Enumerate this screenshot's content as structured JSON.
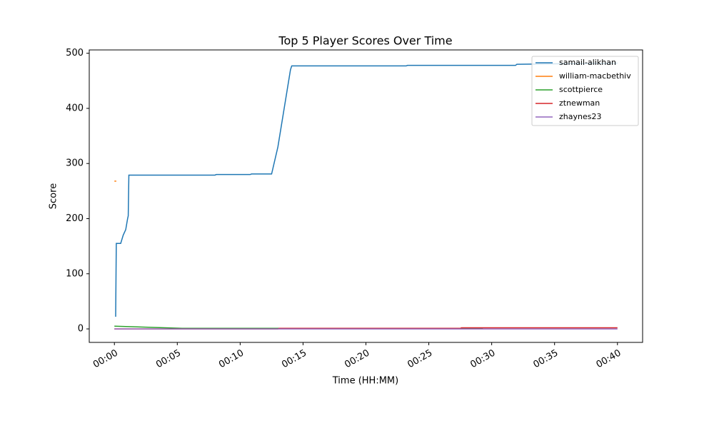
{
  "chart_data": {
    "type": "line",
    "title": "Top 5 Player Scores Over Time",
    "x_label": "Time (HH:MM)",
    "y_label": "Score",
    "xlim": [
      -2,
      42
    ],
    "ylim": [
      -24.5,
      506
    ],
    "xticks": [
      {
        "value": 0,
        "label": "00:00"
      },
      {
        "value": 5,
        "label": "00:05"
      },
      {
        "value": 10,
        "label": "00:10"
      },
      {
        "value": 15,
        "label": "00:15"
      },
      {
        "value": 20,
        "label": "00:20"
      },
      {
        "value": 25,
        "label": "00:25"
      },
      {
        "value": 30,
        "label": "00:30"
      },
      {
        "value": 35,
        "label": "00:35"
      },
      {
        "value": 40,
        "label": "00:40"
      }
    ],
    "yticks": [
      0,
      100,
      200,
      300,
      400,
      500
    ],
    "grid": false,
    "legend": "upper right",
    "series": [
      {
        "name": "samail-alikhan",
        "color": "#1f77b4",
        "x": [
          0.1,
          0.15,
          0.5,
          0.7,
          0.9,
          1.05,
          1.1,
          1.15,
          8,
          8.1,
          10.8,
          10.9,
          12.5,
          13,
          13.5,
          14,
          14.1,
          23.2,
          23.3,
          31.9,
          32,
          40
        ],
        "values": [
          22,
          155,
          155,
          170,
          180,
          200,
          205,
          279,
          279,
          280,
          280,
          281,
          281,
          330,
          400,
          470,
          477,
          477,
          478,
          478,
          480,
          482
        ]
      },
      {
        "name": "william-macbethiv",
        "color": "#ff7f0e",
        "x": [
          0,
          0.15
        ],
        "values": [
          268,
          268
        ]
      },
      {
        "name": "scottpierce",
        "color": "#2ca02c",
        "x": [
          0,
          5.5,
          29.3
        ],
        "values": [
          5,
          1,
          1
        ]
      },
      {
        "name": "ztnewman",
        "color": "#d62728",
        "x": [
          0,
          13,
          13.1,
          27.5,
          27.6,
          40
        ],
        "values": [
          0,
          0,
          1,
          1,
          2,
          2
        ]
      },
      {
        "name": "zhaynes23",
        "color": "#9467bd",
        "x": [
          0,
          40
        ],
        "values": [
          0,
          0
        ]
      }
    ]
  }
}
